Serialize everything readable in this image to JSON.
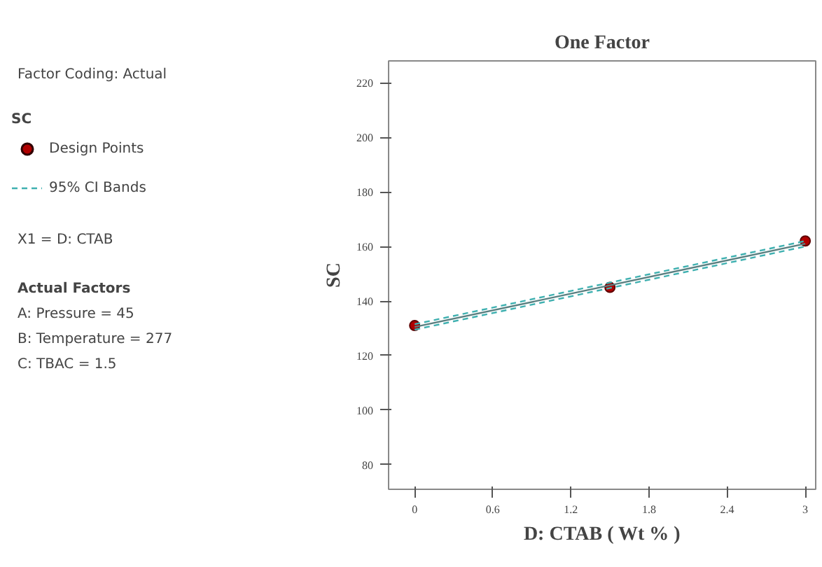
{
  "chart_data": {
    "type": "scatter",
    "title": "One Factor",
    "xlabel": "D: CTAB ( Wt % )",
    "ylabel": "SC",
    "legend_title": "SC",
    "xlim": [
      -0.2,
      3.08
    ],
    "ylim": [
      71,
      228
    ],
    "xticks": [
      0,
      0.6,
      1.2,
      1.8,
      2.4,
      3
    ],
    "yticks": [
      80,
      100,
      120,
      140,
      160,
      180,
      200,
      220
    ],
    "grid": false,
    "legend": "left",
    "series": [
      {
        "name": "Design Points",
        "color": "#b00000",
        "marker": "circle",
        "x": [
          0,
          1.5,
          3
        ],
        "values": [
          131,
          145,
          162
        ]
      },
      {
        "type": "line",
        "color": "#5a7f80",
        "line_style": "solid",
        "x": [
          0,
          3
        ],
        "values": [
          130.5,
          161
        ]
      },
      {
        "name": "95% CI Bands",
        "type": "line",
        "color": "#3fb0b0",
        "line_style": "dashed",
        "x": [
          0,
          3
        ],
        "values": [
          131.5,
          162
        ]
      },
      {
        "type": "line",
        "color": "#3fb0b0",
        "line_style": "dashed",
        "x": [
          0,
          3
        ],
        "values": [
          129.5,
          160
        ]
      }
    ],
    "annotations": [
      "Factor Coding: Actual",
      "X1 = D: CTAB",
      "Actual Factors",
      "A: Pressure = 45",
      "B: Temperature = 277",
      "C: TBAC = 1.5"
    ]
  }
}
